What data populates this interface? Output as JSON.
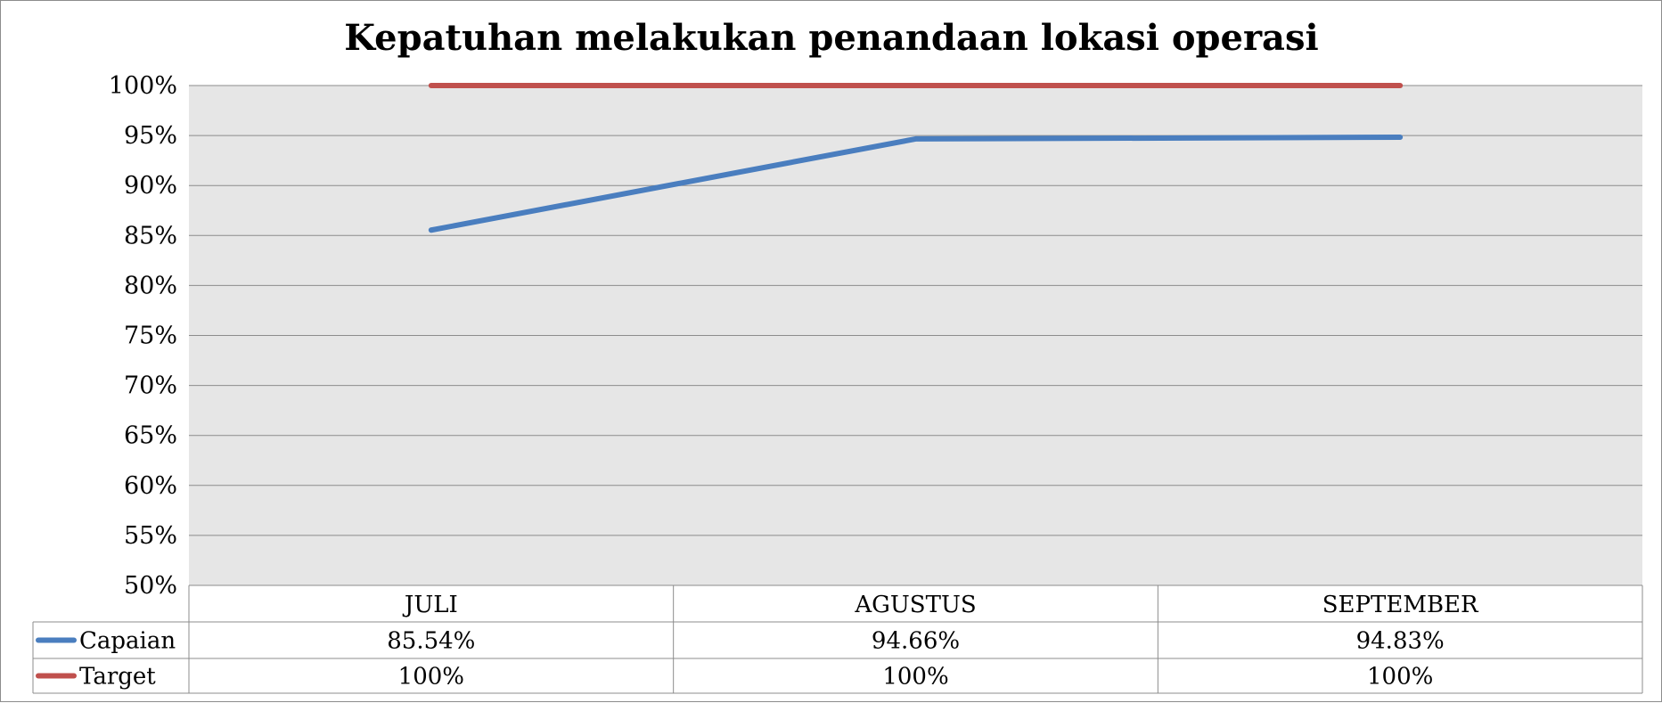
{
  "chart_data": {
    "type": "line",
    "title": "Kepatuhan melakukan penandaan lokasi operasi",
    "categories": [
      "JULI",
      "AGUSTUS",
      "SEPTEMBER"
    ],
    "series": [
      {
        "name": "Capaian",
        "values": [
          85.54,
          94.66,
          94.83
        ],
        "labels": [
          "85.54%",
          "94.66%",
          "94.83%"
        ],
        "color": "#4a7ebf"
      },
      {
        "name": "Target",
        "values": [
          100,
          100,
          100
        ],
        "labels": [
          "100%",
          "100%",
          "100%"
        ],
        "color": "#c0504d"
      }
    ],
    "ylim": [
      50,
      100
    ],
    "yticks": [
      "50%",
      "55%",
      "60%",
      "65%",
      "70%",
      "75%",
      "80%",
      "85%",
      "90%",
      "95%",
      "100%"
    ],
    "grid": true,
    "plot_background": "#e6e6e6",
    "legend": "data-table"
  }
}
